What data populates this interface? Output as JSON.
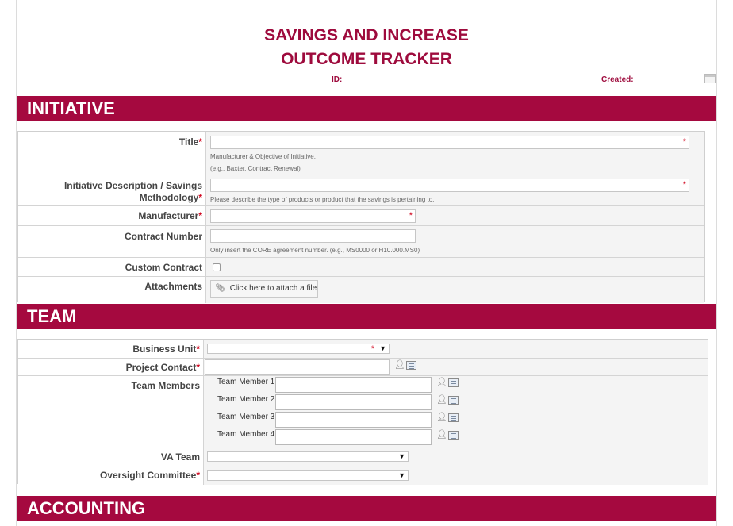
{
  "header": {
    "title_line1": "SAVINGS AND INCREASE",
    "title_line2": "OUTCOME TRACKER",
    "id_label": "ID:",
    "created_label": "Created:"
  },
  "colors": {
    "accent": "#a5093f",
    "required": "#d0021b"
  },
  "initiative": {
    "section_label": "INITIATIVE",
    "title": {
      "label": "Title",
      "hint1": "Manufacturer & Objective of Initiative.",
      "hint2": "(e.g., Baxter, Contract Renewal)"
    },
    "description": {
      "label_line1": "Initiative Description / Savings",
      "label_line2": "Methodology",
      "hint": "Please describe the type of products or product that the savings is pertaining to."
    },
    "manufacturer": {
      "label": "Manufacturer"
    },
    "contract_number": {
      "label": "Contract Number",
      "hint": "Only insert the CORE agreement number. (e.g., MS0000 or H10.000.MS0)"
    },
    "custom_contract": {
      "label": "Custom Contract"
    },
    "attachments": {
      "label": "Attachments",
      "button": "Click here to attach a file"
    }
  },
  "team": {
    "section_label": "TEAM",
    "business_unit": {
      "label": "Business Unit"
    },
    "project_contact": {
      "label": "Project Contact"
    },
    "team_members": {
      "label": "Team Members",
      "members": [
        "Team Member 1",
        "Team Member 2",
        "Team Member 3",
        "Team Member 4"
      ]
    },
    "va_team": {
      "label": "VA Team"
    },
    "oversight_committee": {
      "label": "Oversight Committee"
    }
  },
  "accounting": {
    "section_label": "ACCOUNTING"
  },
  "icons": {
    "required": "*",
    "attach": "paperclip-icon",
    "people_picker": "check-names-icon",
    "browse": "address-book-icon",
    "dropdown": "▼"
  }
}
